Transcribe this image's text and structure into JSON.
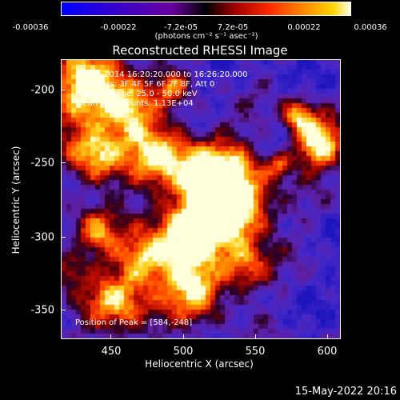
{
  "colorbar": {
    "tick_labels": [
      "-0.00036",
      "-0.00022",
      "-7.2e-05",
      "7.2e-05",
      "0.00022",
      "0.00036"
    ],
    "units": "(photons cm⁻² s⁻¹ asec⁻²)",
    "range": [
      -0.00036,
      0.00036
    ],
    "colormap": [
      "#0000ff",
      "#3a00c8",
      "#6400a0",
      "#000000",
      "#a00000",
      "#ff2a00",
      "#ff8a00",
      "#ffd400",
      "#ffffe6"
    ]
  },
  "plot": {
    "title": "Reconstructed RHESSI Image",
    "xlabel": "Heliocentric X (arcsec)",
    "ylabel": "Heliocentric Y (arcsec)",
    "xlim": [
      416,
      611
    ],
    "ylim": [
      -374,
      -179
    ],
    "xticks": [
      "450",
      "500",
      "550",
      "600"
    ],
    "yticks": [
      "-200",
      "-250",
      "-300",
      "-350"
    ],
    "annotations": {
      "time_range": "15-Jun-2014 16:20:20.000 to 16:26:20.000",
      "detectors": "Detectors: 3F 4F 5F 6F 7F 8F, Att 0",
      "energy": "Energy Range: 25.0 - 50.0 keV",
      "clean": "Clean   Total counts: 1.13E+04",
      "peak": "Position of Peak = [584,-248]"
    }
  },
  "footer": {
    "timestamp": "15-May-2022 20:16"
  }
}
